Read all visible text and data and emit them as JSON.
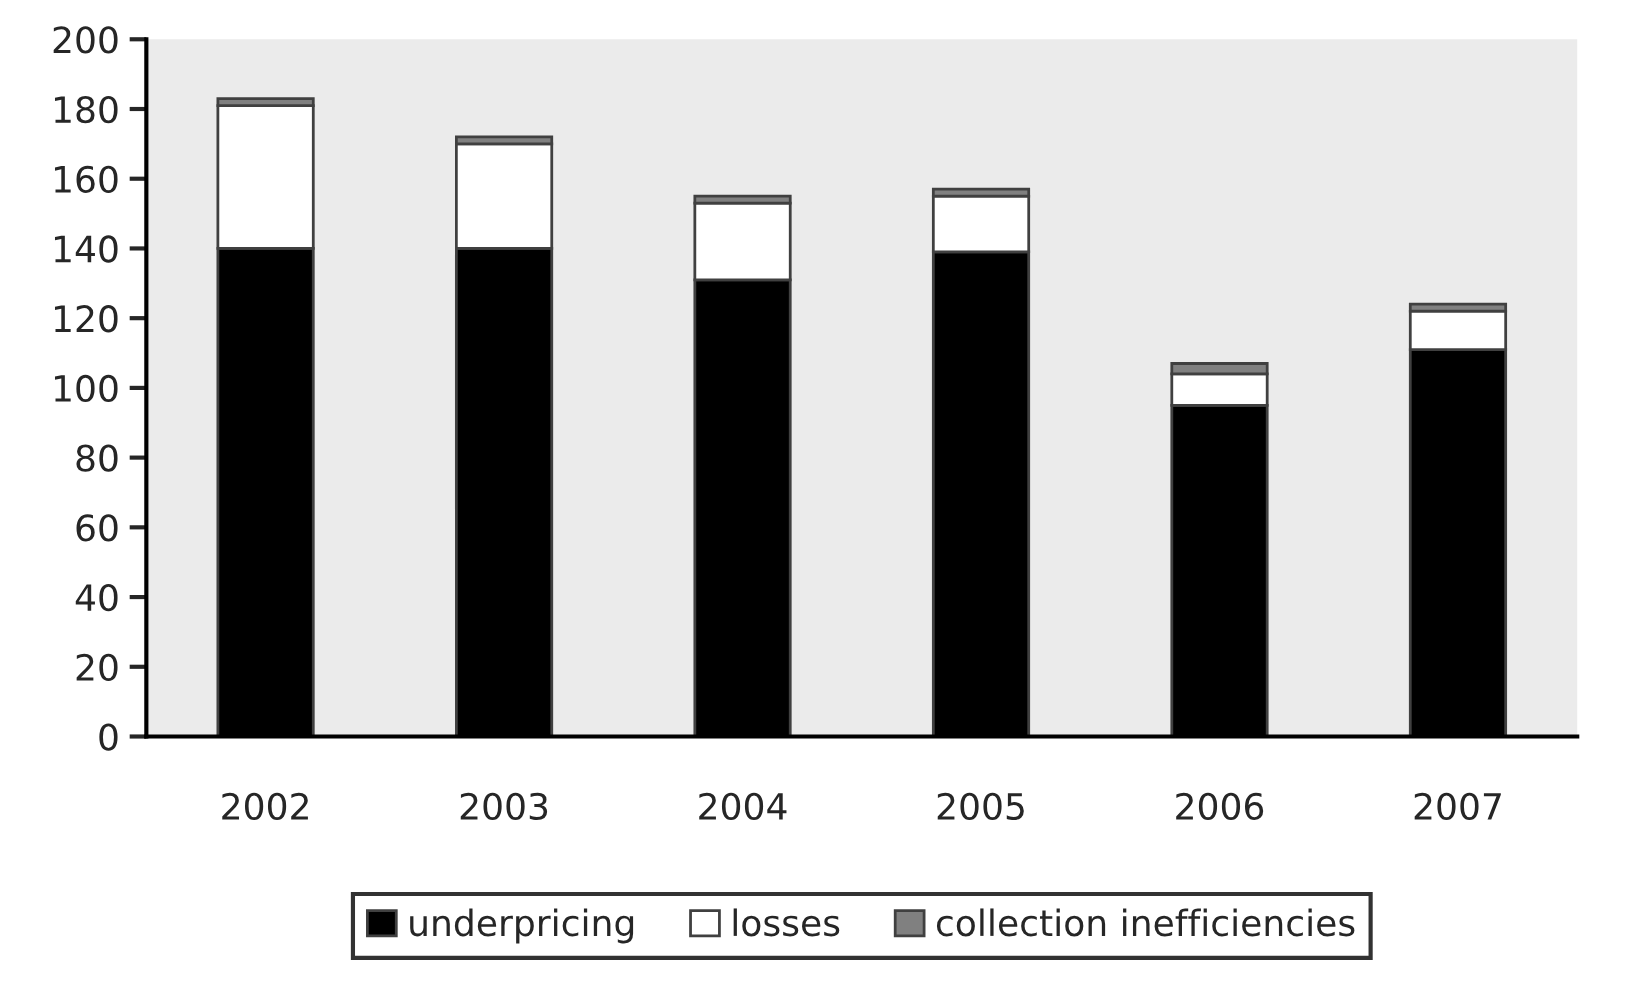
{
  "chart_data": {
    "type": "bar",
    "stacked": true,
    "categories": [
      "2002",
      "2003",
      "2004",
      "2005",
      "2006",
      "2007"
    ],
    "series": [
      {
        "name": "underpricing",
        "color": "#000000",
        "values": [
          140,
          140,
          131,
          139,
          95,
          111
        ]
      },
      {
        "name": "losses",
        "color": "#ffffff",
        "values": [
          41,
          30,
          22,
          16,
          9,
          11
        ]
      },
      {
        "name": "collection inefficiencies",
        "color": "#808080",
        "values": [
          2,
          2,
          2,
          2,
          3,
          2
        ]
      }
    ],
    "ylim": [
      0,
      200
    ],
    "yticks": [
      0,
      20,
      40,
      60,
      80,
      100,
      120,
      140,
      160,
      180,
      200
    ],
    "grid": false,
    "legend": "bottom"
  }
}
